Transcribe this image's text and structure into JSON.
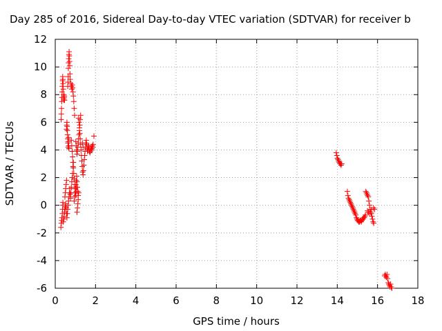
{
  "chart_data": {
    "type": "scatter",
    "title": "Day 285 of 2016, Sidereal Day-to-day VTEC variation (SDTVAR) for receiver b",
    "xlabel": "GPS time / hours",
    "ylabel": "SDTVAR / TECUs",
    "xlim": [
      0,
      18
    ],
    "ylim": [
      -6,
      12
    ],
    "xticks": [
      0,
      2,
      4,
      6,
      8,
      10,
      12,
      14,
      16,
      18
    ],
    "yticks": [
      -6,
      -4,
      -2,
      0,
      2,
      4,
      6,
      8,
      10,
      12
    ],
    "grid": true,
    "marker": "plus",
    "color": "#ff0000",
    "series": [
      {
        "points": [
          [
            0.28,
            -1.6
          ],
          [
            0.3,
            -1.3
          ],
          [
            0.32,
            -1.1
          ],
          [
            0.33,
            -0.9
          ],
          [
            0.35,
            -0.6
          ],
          [
            0.36,
            -0.3
          ],
          [
            0.37,
            0.0
          ],
          [
            0.38,
            0.2
          ],
          [
            0.29,
            6.2
          ],
          [
            0.3,
            6.6
          ],
          [
            0.31,
            7.0
          ],
          [
            0.32,
            7.5
          ],
          [
            0.33,
            7.8
          ],
          [
            0.34,
            8.2
          ],
          [
            0.35,
            8.6
          ],
          [
            0.36,
            9.0
          ],
          [
            0.37,
            9.3
          ],
          [
            0.38,
            9.1
          ],
          [
            0.39,
            8.8
          ],
          [
            0.4,
            8.4
          ],
          [
            0.41,
            8.0
          ],
          [
            0.42,
            7.7
          ],
          [
            0.43,
            7.6
          ],
          [
            0.44,
            7.8
          ],
          [
            0.45,
            7.9
          ],
          [
            0.46,
            7.6
          ],
          [
            0.4,
            -1.2
          ],
          [
            0.42,
            -1.0
          ],
          [
            0.44,
            -0.8
          ],
          [
            0.46,
            -0.5
          ],
          [
            0.48,
            -0.3
          ],
          [
            0.5,
            -0.1
          ],
          [
            0.52,
            0.1
          ],
          [
            0.54,
            -0.2
          ],
          [
            0.56,
            -0.6
          ],
          [
            0.58,
            -0.9
          ],
          [
            0.6,
            -0.6
          ],
          [
            0.62,
            -0.3
          ],
          [
            0.64,
            0.0
          ],
          [
            0.66,
            0.3
          ],
          [
            0.48,
            0.6
          ],
          [
            0.5,
            0.9
          ],
          [
            0.52,
            1.2
          ],
          [
            0.54,
            1.5
          ],
          [
            0.56,
            1.8
          ],
          [
            0.56,
            5.5
          ],
          [
            0.57,
            5.8
          ],
          [
            0.58,
            6.0
          ],
          [
            0.59,
            5.7
          ],
          [
            0.6,
            5.4
          ],
          [
            0.61,
            5.1
          ],
          [
            0.62,
            4.8
          ],
          [
            0.63,
            4.5
          ],
          [
            0.64,
            4.2
          ],
          [
            0.65,
            4.6
          ],
          [
            0.66,
            4.9
          ],
          [
            0.67,
            4.3
          ],
          [
            0.68,
            4.1
          ],
          [
            0.62,
            8.6
          ],
          [
            0.63,
            8.9
          ],
          [
            0.64,
            9.3
          ],
          [
            0.65,
            9.9
          ],
          [
            0.66,
            10.3
          ],
          [
            0.67,
            10.6
          ],
          [
            0.68,
            10.9
          ],
          [
            0.69,
            11.1
          ],
          [
            0.7,
            10.8
          ],
          [
            0.71,
            10.4
          ],
          [
            0.72,
            10.1
          ],
          [
            0.73,
            9.5
          ],
          [
            0.74,
            9.1
          ],
          [
            0.68,
            0.6
          ],
          [
            0.7,
            0.9
          ],
          [
            0.72,
            1.2
          ],
          [
            0.74,
            0.8
          ],
          [
            0.76,
            0.5
          ],
          [
            0.78,
            0.9
          ],
          [
            0.8,
            1.3
          ],
          [
            0.82,
            1.7
          ],
          [
            0.84,
            2.0
          ],
          [
            0.86,
            2.3
          ],
          [
            0.88,
            2.8
          ],
          [
            0.9,
            3.1
          ],
          [
            0.78,
            8.8
          ],
          [
            0.8,
            8.6
          ],
          [
            0.82,
            8.4
          ],
          [
            0.84,
            8.7
          ],
          [
            0.86,
            8.5
          ],
          [
            0.88,
            8.2
          ],
          [
            0.9,
            7.9
          ],
          [
            0.92,
            7.5
          ],
          [
            0.94,
            7.0
          ],
          [
            0.96,
            6.5
          ],
          [
            0.8,
            4.7
          ],
          [
            0.82,
            4.3
          ],
          [
            0.84,
            3.9
          ],
          [
            0.86,
            3.5
          ],
          [
            0.88,
            3.1
          ],
          [
            0.9,
            2.7
          ],
          [
            0.92,
            2.3
          ],
          [
            0.94,
            1.9
          ],
          [
            0.96,
            1.5
          ],
          [
            0.98,
            1.2
          ],
          [
            1.0,
            0.9
          ],
          [
            1.02,
            0.7
          ],
          [
            1.04,
            1.0
          ],
          [
            1.06,
            1.3
          ],
          [
            0.94,
            0.3
          ],
          [
            0.96,
            0.6
          ],
          [
            0.98,
            0.9
          ],
          [
            1.0,
            1.2
          ],
          [
            1.02,
            1.5
          ],
          [
            1.04,
            1.8
          ],
          [
            1.06,
            2.1
          ],
          [
            1.08,
            1.7
          ],
          [
            1.1,
            1.3
          ],
          [
            1.12,
            1.0
          ],
          [
            1.14,
            0.7
          ],
          [
            1.16,
            0.9
          ],
          [
            1.02,
            4.6
          ],
          [
            1.04,
            4.3
          ],
          [
            1.06,
            4.0
          ],
          [
            1.08,
            3.7
          ],
          [
            1.1,
            3.9
          ],
          [
            1.12,
            4.2
          ],
          [
            1.14,
            4.5
          ],
          [
            1.16,
            4.8
          ],
          [
            1.18,
            5.1
          ],
          [
            1.2,
            5.4
          ],
          [
            1.22,
            5.8
          ],
          [
            1.24,
            6.2
          ],
          [
            1.26,
            6.5
          ],
          [
            1.16,
            6.3
          ],
          [
            1.18,
            6.0
          ],
          [
            1.2,
            5.6
          ],
          [
            1.22,
            5.2
          ],
          [
            1.24,
            4.8
          ],
          [
            1.26,
            4.4
          ],
          [
            1.28,
            4.0
          ],
          [
            1.3,
            3.6
          ],
          [
            1.32,
            3.2
          ],
          [
            1.34,
            2.8
          ],
          [
            1.36,
            2.4
          ],
          [
            1.38,
            2.2
          ],
          [
            1.4,
            2.5
          ],
          [
            1.42,
            2.9
          ],
          [
            1.44,
            3.3
          ],
          [
            1.46,
            3.6
          ],
          [
            1.48,
            3.9
          ],
          [
            1.5,
            4.2
          ],
          [
            1.52,
            4.5
          ],
          [
            1.54,
            4.7
          ],
          [
            1.56,
            4.4
          ],
          [
            1.58,
            4.1
          ],
          [
            1.6,
            3.9
          ],
          [
            1.62,
            4.0
          ],
          [
            1.64,
            4.2
          ],
          [
            1.66,
            4.3
          ],
          [
            1.68,
            4.1
          ],
          [
            1.7,
            3.9
          ],
          [
            1.72,
            3.8
          ],
          [
            1.74,
            3.9
          ],
          [
            1.76,
            4.1
          ],
          [
            1.78,
            4.2
          ],
          [
            1.8,
            4.0
          ],
          [
            1.82,
            4.1
          ],
          [
            1.84,
            4.3
          ],
          [
            1.86,
            4.2
          ],
          [
            1.88,
            4.4
          ],
          [
            1.92,
            5.0
          ],
          [
            1.08,
            -0.5
          ],
          [
            1.1,
            -0.2
          ],
          [
            1.12,
            0.1
          ],
          [
            1.14,
            0.4
          ],
          [
            1.36,
            4.5
          ],
          [
            1.38,
            4.2
          ],
          [
            13.95,
            3.8
          ],
          [
            13.98,
            3.6
          ],
          [
            14.01,
            3.4
          ],
          [
            14.04,
            3.3
          ],
          [
            14.07,
            3.2
          ],
          [
            14.1,
            3.1
          ],
          [
            14.13,
            3.0
          ],
          [
            14.16,
            3.0
          ],
          [
            14.19,
            2.9
          ],
          [
            14.22,
            3.0
          ],
          [
            14.5,
            1.0
          ],
          [
            14.53,
            0.7
          ],
          [
            14.56,
            0.5
          ],
          [
            14.59,
            0.4
          ],
          [
            14.62,
            0.3
          ],
          [
            14.65,
            0.2
          ],
          [
            14.68,
            0.1
          ],
          [
            14.71,
            0.0
          ],
          [
            14.74,
            -0.1
          ],
          [
            14.77,
            -0.2
          ],
          [
            14.8,
            -0.3
          ],
          [
            14.83,
            -0.4
          ],
          [
            14.86,
            -0.5
          ],
          [
            14.89,
            -0.6
          ],
          [
            14.92,
            -0.7
          ],
          [
            14.95,
            -0.9
          ],
          [
            14.98,
            -1.0
          ],
          [
            15.01,
            -1.1
          ],
          [
            15.04,
            -1.1
          ],
          [
            15.07,
            -1.2
          ],
          [
            15.1,
            -1.2
          ],
          [
            15.13,
            -1.1
          ],
          [
            15.16,
            -1.1
          ],
          [
            15.19,
            -1.2
          ],
          [
            15.22,
            -1.1
          ],
          [
            15.25,
            -1.0
          ],
          [
            15.28,
            -1.0
          ],
          [
            15.31,
            -0.9
          ],
          [
            15.34,
            -0.9
          ],
          [
            15.37,
            -0.8
          ],
          [
            15.4,
            -0.7
          ],
          [
            15.42,
            1.0
          ],
          [
            15.45,
            0.9
          ],
          [
            15.48,
            0.8
          ],
          [
            15.51,
            0.7
          ],
          [
            15.54,
            0.6
          ],
          [
            15.57,
            0.3
          ],
          [
            15.6,
            0.0
          ],
          [
            15.63,
            -0.3
          ],
          [
            15.66,
            -0.5
          ],
          [
            15.69,
            -0.6
          ],
          [
            15.72,
            -0.8
          ],
          [
            15.75,
            -1.0
          ],
          [
            15.78,
            -1.2
          ],
          [
            15.81,
            -1.3
          ],
          [
            15.5,
            -0.4
          ],
          [
            15.55,
            -0.5
          ],
          [
            15.6,
            -0.6
          ],
          [
            15.7,
            -0.3
          ],
          [
            15.8,
            -0.2
          ],
          [
            15.85,
            -0.3
          ],
          [
            16.35,
            -5.1
          ],
          [
            16.38,
            -5.0
          ],
          [
            16.41,
            -5.1
          ],
          [
            16.44,
            -5.2
          ],
          [
            16.47,
            -5.0
          ],
          [
            16.5,
            -5.3
          ],
          [
            16.53,
            -5.6
          ],
          [
            16.56,
            -5.7
          ],
          [
            16.59,
            -5.8
          ],
          [
            16.62,
            -5.9
          ],
          [
            16.65,
            -5.7
          ],
          [
            16.68,
            -5.9
          ],
          [
            16.71,
            -6.0
          ]
        ]
      }
    ]
  }
}
